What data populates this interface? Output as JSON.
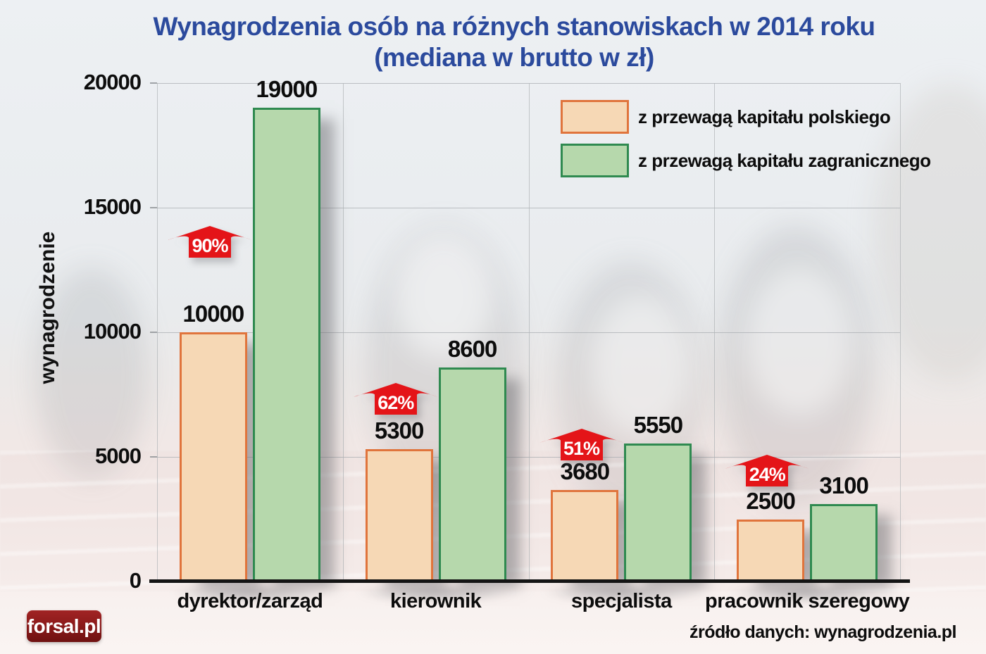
{
  "title": {
    "line1": "Wynagrodzenia osób na różnych stanowiskach w 2014 roku",
    "line2": "(mediana w  brutto w zł)",
    "color": "#2b4a9d"
  },
  "legend": {
    "items": [
      {
        "label": "z przewagą kapitału polskiego",
        "fill": "#f6d8b5",
        "border": "#e0743c"
      },
      {
        "label": "z przewagą kapitału zagranicznego",
        "fill": "#b6d8ac",
        "border": "#2f8a50"
      }
    ]
  },
  "logo": {
    "text": "forsal.pl"
  },
  "source": "źródło danych: wynagrodzenia.pl",
  "colors": {
    "arrow_red": "#e41418",
    "axis": "#141414",
    "grid": "#aeb2b6",
    "value_text": "#0c0c0c"
  },
  "chart_data": {
    "type": "bar",
    "title": "Wynagrodzenia osób na różnych stanowiskach w 2014 roku (mediana w brutto w zł)",
    "categories": [
      "dyrektor/zarząd",
      "kierownik",
      "specjalista",
      "pracownik szeregowy"
    ],
    "series": [
      {
        "name": "z przewagą kapitału polskiego",
        "values": [
          10000,
          5300,
          3680,
          2500
        ],
        "fill": "#f6d8b5",
        "border": "#e0743c"
      },
      {
        "name": "z przewagą kapitału zagranicznego",
        "values": [
          19000,
          8600,
          5550,
          3100
        ],
        "fill": "#b6d8ac",
        "border": "#2f8a50"
      }
    ],
    "percent_increase": [
      "90%",
      "62%",
      "51%",
      "24%"
    ],
    "xlabel": "",
    "ylabel": "wynagrodzenie",
    "ylim": [
      0,
      20000
    ],
    "yticks": [
      0,
      5000,
      10000,
      15000,
      20000
    ],
    "grid": true,
    "legend_position": "top-right"
  }
}
